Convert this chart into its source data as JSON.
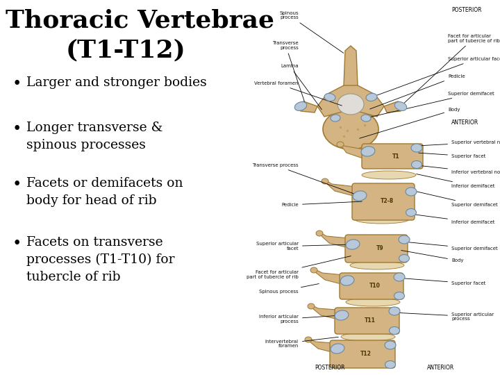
{
  "title_line1": "Thoracic Vertebrae",
  "title_line2": "(T1-T12)",
  "bullet_points": [
    "Larger and stronger bodies",
    "Longer transverse &\nspinous processes",
    "Facets or demifacets on\nbody for head of rib",
    "Facets on transverse\nprocesses (T1-T10) for\ntubercle of rib"
  ],
  "background_color": "#ffffff",
  "text_color": "#000000",
  "title_fontsize": 26,
  "bullet_fontsize": 13.5
}
